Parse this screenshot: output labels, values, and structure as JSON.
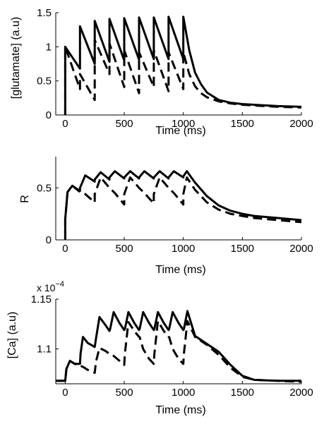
{
  "colors": {
    "line": "#000000",
    "background": "#ffffff"
  },
  "chart_data": [
    {
      "type": "line",
      "title": "",
      "xlabel": "Time (ms)",
      "ylabel": "[glutamate] (a.u)",
      "xlim": [
        -80,
        2000
      ],
      "ylim": [
        0,
        1.5
      ],
      "xticks": [
        0,
        500,
        1000,
        1500,
        2000
      ],
      "yticks": [
        0,
        0.5,
        1,
        1.5
      ],
      "ytick_labels": [
        "0",
        "0.5",
        "1",
        "1.5"
      ],
      "grid": false,
      "series": [
        {
          "style": "solid",
          "x": [
            0,
            0,
            125,
            125,
            250,
            250,
            375,
            375,
            500,
            500,
            625,
            625,
            750,
            750,
            875,
            875,
            1000,
            1000,
            1050,
            1100,
            1150,
            1200,
            1300,
            1400,
            1500,
            1600,
            1800,
            2000
          ],
          "y": [
            0,
            1.0,
            0.68,
            1.3,
            0.75,
            1.38,
            0.78,
            1.41,
            0.8,
            1.42,
            0.81,
            1.43,
            0.82,
            1.43,
            0.82,
            1.44,
            0.82,
            1.44,
            0.95,
            0.62,
            0.45,
            0.33,
            0.22,
            0.18,
            0.16,
            0.15,
            0.13,
            0.12
          ]
        },
        {
          "style": "dashed",
          "x": [
            0,
            0,
            125,
            125,
            250,
            250,
            375,
            375,
            500,
            500,
            625,
            625,
            750,
            750,
            875,
            875,
            1000,
            1000,
            1050,
            1100,
            1150,
            1200,
            1300,
            1400,
            1500,
            1600,
            1800,
            2000
          ],
          "y": [
            0,
            1.0,
            0.38,
            0.6,
            0.22,
            1.1,
            0.6,
            1.05,
            0.41,
            0.95,
            0.32,
            0.92,
            0.41,
            0.95,
            0.35,
            0.92,
            0.38,
            0.92,
            0.6,
            0.42,
            0.32,
            0.26,
            0.2,
            0.17,
            0.15,
            0.14,
            0.12,
            0.11
          ]
        }
      ]
    },
    {
      "type": "line",
      "title": "",
      "xlabel": "Time (ms)",
      "ylabel": "R",
      "xlim": [
        -80,
        2000
      ],
      "ylim": [
        0,
        0.8
      ],
      "xticks": [
        0,
        500,
        1000,
        1500,
        2000
      ],
      "yticks": [
        0,
        0.5
      ],
      "ytick_labels": [
        "0",
        "0.5"
      ],
      "grid": false,
      "series": [
        {
          "style": "solid",
          "x": [
            0,
            0,
            20,
            60,
            125,
            125,
            170,
            250,
            250,
            300,
            375,
            375,
            420,
            500,
            500,
            550,
            625,
            625,
            670,
            750,
            750,
            800,
            875,
            875,
            920,
            1000,
            1000,
            1030,
            1100,
            1200,
            1300,
            1400,
            1500,
            1600,
            1800,
            2000
          ],
          "y": [
            0,
            0.2,
            0.46,
            0.52,
            0.47,
            0.5,
            0.62,
            0.56,
            0.58,
            0.65,
            0.58,
            0.6,
            0.66,
            0.59,
            0.6,
            0.66,
            0.59,
            0.6,
            0.66,
            0.59,
            0.6,
            0.66,
            0.59,
            0.6,
            0.66,
            0.6,
            0.61,
            0.66,
            0.55,
            0.42,
            0.33,
            0.28,
            0.25,
            0.23,
            0.21,
            0.19
          ]
        },
        {
          "style": "dashed",
          "x": [
            0,
            0,
            20,
            60,
            125,
            125,
            170,
            250,
            250,
            300,
            375,
            375,
            420,
            500,
            500,
            550,
            625,
            625,
            670,
            750,
            750,
            800,
            875,
            875,
            920,
            1000,
            1000,
            1030,
            1100,
            1200,
            1300,
            1400,
            1500,
            1600,
            1800,
            2000
          ],
          "y": [
            0,
            0.2,
            0.46,
            0.52,
            0.46,
            0.46,
            0.44,
            0.36,
            0.44,
            0.6,
            0.5,
            0.5,
            0.45,
            0.34,
            0.44,
            0.6,
            0.5,
            0.5,
            0.45,
            0.35,
            0.44,
            0.6,
            0.5,
            0.5,
            0.45,
            0.34,
            0.44,
            0.6,
            0.48,
            0.36,
            0.29,
            0.25,
            0.23,
            0.21,
            0.19,
            0.17
          ]
        }
      ]
    },
    {
      "type": "line",
      "title": "",
      "xlabel": "Time (ms)",
      "ylabel": "[Ca]  (a.u)",
      "y_exponent": "x 10",
      "y_exponent_power": "−4",
      "xlim": [
        -80,
        2000
      ],
      "ylim": [
        1.065,
        1.15
      ],
      "xticks": [
        0,
        500,
        1000,
        1500,
        2000
      ],
      "yticks": [
        1.1,
        1.15
      ],
      "ytick_labels": [
        "1.1",
        "1.15"
      ],
      "grid": false,
      "series": [
        {
          "style": "solid",
          "x": [
            -80,
            0,
            10,
            40,
            80,
            125,
            130,
            150,
            190,
            250,
            260,
            290,
            340,
            375,
            380,
            410,
            460,
            500,
            505,
            535,
            585,
            625,
            630,
            660,
            710,
            750,
            755,
            785,
            835,
            875,
            880,
            910,
            960,
            1000,
            1005,
            1035,
            1100,
            1200,
            1300,
            1400,
            1500,
            1600,
            1800,
            2000
          ],
          "y": [
            1.068,
            1.068,
            1.08,
            1.088,
            1.085,
            1.085,
            1.095,
            1.112,
            1.106,
            1.102,
            1.11,
            1.132,
            1.124,
            1.118,
            1.12,
            1.137,
            1.126,
            1.119,
            1.12,
            1.137,
            1.126,
            1.119,
            1.12,
            1.137,
            1.126,
            1.119,
            1.12,
            1.137,
            1.126,
            1.119,
            1.12,
            1.137,
            1.126,
            1.119,
            1.12,
            1.138,
            1.113,
            1.105,
            1.097,
            1.084,
            1.073,
            1.069,
            1.068,
            1.068
          ]
        },
        {
          "style": "dashed",
          "x": [
            -80,
            0,
            10,
            40,
            80,
            125,
            130,
            150,
            190,
            250,
            260,
            290,
            340,
            375,
            380,
            410,
            460,
            500,
            505,
            535,
            585,
            625,
            630,
            660,
            710,
            750,
            755,
            785,
            835,
            875,
            880,
            910,
            960,
            1000,
            1005,
            1035,
            1100,
            1200,
            1300,
            1400,
            1500,
            1600,
            1800,
            2000
          ],
          "y": [
            1.068,
            1.068,
            1.08,
            1.088,
            1.085,
            1.083,
            1.083,
            1.082,
            1.079,
            1.076,
            1.087,
            1.101,
            1.098,
            1.095,
            1.095,
            1.093,
            1.088,
            1.084,
            1.095,
            1.127,
            1.118,
            1.112,
            1.112,
            1.1,
            1.09,
            1.085,
            1.095,
            1.128,
            1.118,
            1.112,
            1.112,
            1.1,
            1.09,
            1.085,
            1.095,
            1.128,
            1.112,
            1.104,
            1.094,
            1.081,
            1.072,
            1.069,
            1.068,
            1.067
          ]
        }
      ]
    }
  ]
}
